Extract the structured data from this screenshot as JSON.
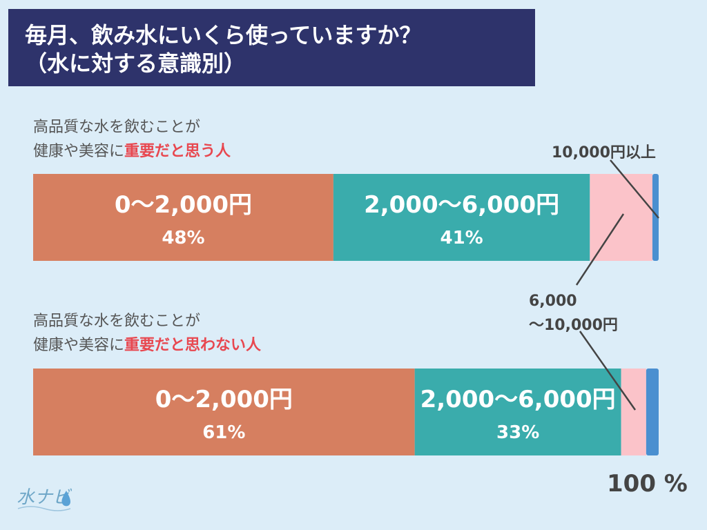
{
  "title": {
    "line1": "毎月、飲み水にいくら使っていますか？",
    "line2": "（水に対する意識別）"
  },
  "groups": [
    {
      "label_line1": "高品質な水を飲むことが",
      "label_line2_prefix": "健康や美容に",
      "label_line2_highlight": "重要だと思う人"
    },
    {
      "label_line1": "高品質な水を飲むことが",
      "label_line2_prefix": "健康や美容に",
      "label_line2_highlight": "重要だと思わない人"
    }
  ],
  "callouts": {
    "top": "10,000円以上",
    "middle_line1": "6,000",
    "middle_line2": "〜10,000円"
  },
  "axis_end_label": "100 %",
  "logo_text": "水ナビ",
  "chart_data": {
    "type": "bar",
    "orientation": "horizontal",
    "stacked": true,
    "title": "毎月、飲み水にいくら使っていますか？（水に対する意識別）",
    "categories": [
      "健康や美容に重要だと思う人",
      "健康や美容に重要だと思わない人"
    ],
    "xlim": [
      0,
      100
    ],
    "series": [
      {
        "name": "0〜2,000円",
        "values": [
          48,
          61
        ],
        "labels": [
          "48%",
          "61%"
        ],
        "color": "#d67f60"
      },
      {
        "name": "2,000〜6,000円",
        "values": [
          41,
          33
        ],
        "labels": [
          "41%",
          "33%"
        ],
        "color": "#3aacac"
      },
      {
        "name": "6,000〜10,000円",
        "values": [
          10,
          4
        ],
        "labels": [],
        "color": "#fbc3c9"
      },
      {
        "name": "10,000円以上",
        "values": [
          1,
          2
        ],
        "labels": [],
        "color": "#4a8fd0"
      }
    ]
  },
  "colors": {
    "title_bg": "#2e336b",
    "background": "#dcedf8",
    "highlight": "#e8474f",
    "leader": "#444444"
  }
}
